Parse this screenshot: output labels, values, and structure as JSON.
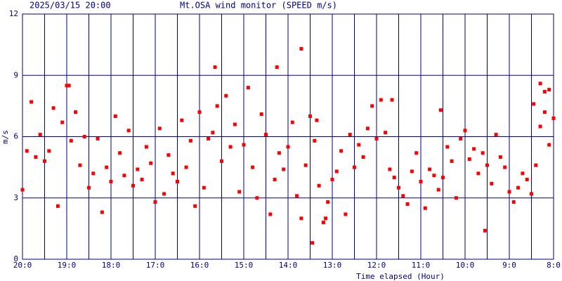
{
  "chart_data": {
    "type": "scatter",
    "date": "2025/03/15 20:00",
    "title": "Mt.OSA wind monitor (SPEED m/s)",
    "y_label": "m/s",
    "x_label": "Time elapsed (Hour)",
    "color": "#ff0000",
    "grid_color": "#000080",
    "grid": true,
    "xlim": [
      0,
      12
    ],
    "ylim": [
      0,
      12
    ],
    "yticks": [
      0,
      3,
      6,
      9,
      12
    ],
    "xticks": [
      {
        "value": 0,
        "label": "20:0"
      },
      {
        "value": 1,
        "label": "19:0"
      },
      {
        "value": 2,
        "label": "18:0"
      },
      {
        "value": 3,
        "label": "17:0"
      },
      {
        "value": 4,
        "label": "16:0"
      },
      {
        "value": 5,
        "label": "15:0"
      },
      {
        "value": 6,
        "label": "14:0"
      },
      {
        "value": 7,
        "label": "13:0"
      },
      {
        "value": 8,
        "label": "12:0"
      },
      {
        "value": 9,
        "label": "11:0"
      },
      {
        "value": 10,
        "label": "10:0"
      },
      {
        "value": 11,
        "label": "9:0"
      },
      {
        "value": 12,
        "label": "8:0"
      }
    ],
    "x": [
      0.0,
      0.1,
      0.2,
      0.3,
      0.4,
      0.5,
      0.6,
      0.7,
      0.8,
      0.9,
      1.0,
      1.1,
      1.2,
      1.3,
      1.4,
      1.5,
      1.6,
      1.7,
      1.8,
      1.9,
      2.0,
      2.1,
      2.2,
      2.3,
      2.4,
      2.5,
      2.6,
      2.7,
      2.8,
      2.9,
      3.0,
      3.1,
      3.2,
      3.3,
      3.4,
      3.5,
      3.6,
      3.7,
      3.8,
      3.9,
      4.0,
      4.1,
      4.2,
      4.3,
      4.4,
      4.5,
      4.6,
      4.7,
      4.8,
      4.9,
      5.0,
      5.1,
      5.2,
      5.3,
      5.4,
      5.5,
      5.6,
      5.7,
      5.8,
      5.9,
      6.0,
      6.1,
      6.2,
      6.3,
      6.4,
      6.5,
      6.6,
      6.7,
      6.8,
      6.9,
      7.0,
      7.1,
      7.2,
      7.3,
      7.4,
      7.5,
      7.6,
      7.7,
      7.8,
      7.9,
      8.0,
      8.1,
      8.2,
      8.3,
      8.4,
      8.5,
      8.6,
      8.7,
      8.8,
      8.9,
      9.0,
      9.1,
      9.2,
      9.3,
      9.4,
      9.5,
      9.6,
      9.7,
      9.8,
      9.9,
      10.0,
      10.1,
      10.2,
      10.3,
      10.4,
      10.5,
      10.6,
      10.7,
      10.8,
      10.9,
      11.0,
      11.1,
      11.2,
      11.3,
      11.4,
      11.5,
      11.6,
      11.7,
      11.8,
      11.9,
      12.0,
      6.3,
      6.55,
      5.75,
      4.35,
      1.05,
      11.7,
      11.8,
      11.55,
      11.9,
      8.35,
      9.45,
      10.45,
      6.85,
      6.65
    ],
    "values": [
      3.4,
      5.3,
      7.7,
      5.0,
      6.1,
      4.8,
      5.3,
      7.4,
      2.6,
      6.7,
      8.5,
      5.8,
      7.2,
      4.6,
      6.0,
      3.5,
      4.2,
      5.9,
      2.3,
      4.5,
      3.8,
      7.0,
      5.2,
      4.1,
      6.3,
      3.6,
      4.4,
      3.9,
      5.5,
      4.7,
      2.8,
      6.4,
      3.2,
      5.1,
      4.2,
      3.8,
      6.8,
      4.5,
      5.8,
      2.6,
      7.2,
      3.5,
      5.9,
      6.2,
      7.5,
      4.8,
      8.0,
      5.5,
      6.6,
      3.3,
      5.6,
      8.4,
      4.5,
      3.0,
      7.1,
      6.1,
      2.2,
      3.9,
      5.2,
      4.4,
      5.5,
      6.7,
      3.1,
      2.0,
      4.6,
      7.0,
      5.8,
      3.6,
      1.8,
      2.8,
      3.9,
      4.3,
      5.3,
      2.2,
      6.1,
      4.5,
      5.6,
      5.0,
      6.4,
      7.5,
      5.9,
      7.8,
      6.2,
      4.4,
      4.0,
      3.5,
      3.1,
      2.7,
      4.3,
      5.2,
      3.8,
      2.5,
      4.4,
      4.1,
      3.4,
      4.0,
      5.5,
      4.8,
      3.0,
      5.9,
      6.3,
      4.9,
      5.4,
      4.2,
      5.2,
      4.6,
      3.7,
      6.1,
      5.0,
      4.5,
      3.3,
      2.8,
      3.5,
      4.2,
      3.9,
      3.2,
      4.6,
      6.5,
      7.2,
      8.3,
      6.9,
      10.3,
      0.8,
      9.4,
      9.4,
      8.5,
      8.6,
      8.2,
      7.6,
      5.6,
      7.8,
      7.3,
      1.4,
      2.0,
      6.8
    ]
  }
}
